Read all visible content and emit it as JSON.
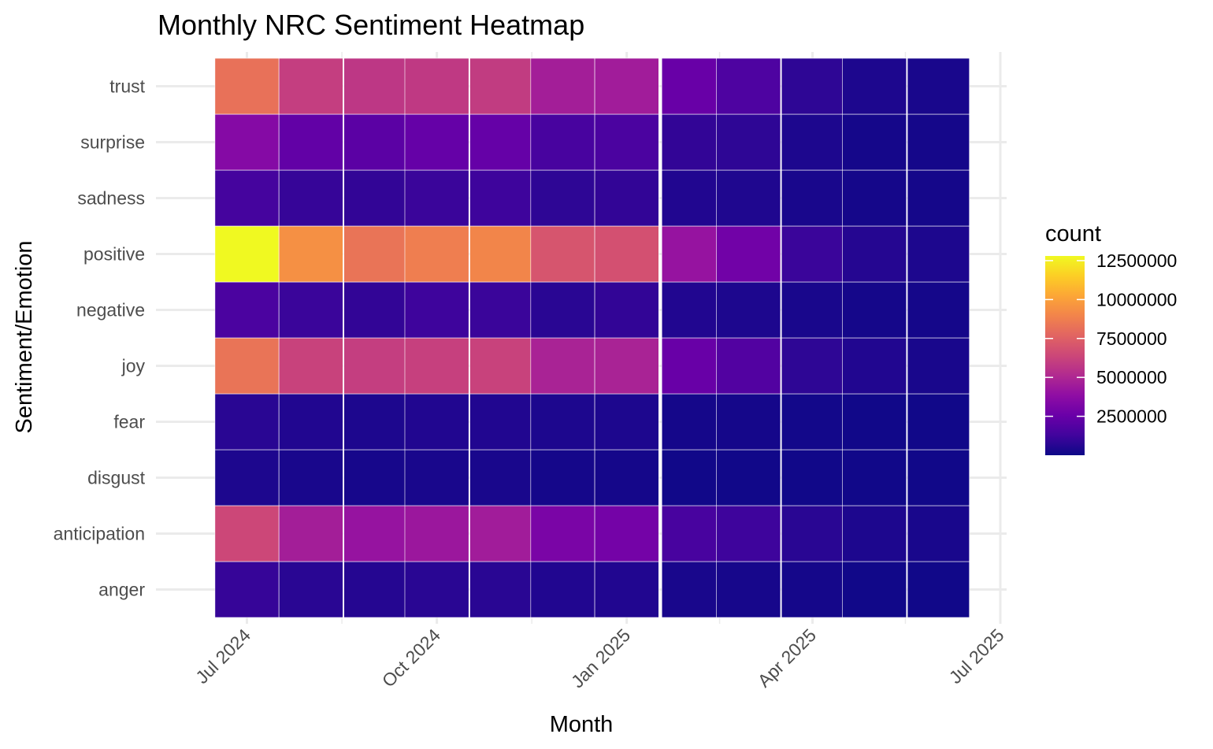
{
  "chart_data": {
    "type": "heatmap",
    "title": "Monthly NRC Sentiment Heatmap",
    "xlabel": "Month",
    "ylabel": "Sentiment/Emotion",
    "x_tick_labels": [
      "Jul 2024",
      "Oct 2024",
      "Jan 2025",
      "Apr 2025",
      "Jul 2025"
    ],
    "x_tick_dates": [
      "2024-07-01",
      "2024-10-01",
      "2025-01-01",
      "2025-04-01",
      "2025-07-01"
    ],
    "x_minor_dates": [
      "2024-08-16",
      "2024-11-16",
      "2025-02-15",
      "2025-05-16"
    ],
    "months": [
      "2024-07-01",
      "2024-08-01",
      "2024-09-01",
      "2024-10-01",
      "2024-11-01",
      "2024-12-01",
      "2025-01-01",
      "2025-02-01",
      "2025-03-01",
      "2025-04-01",
      "2025-05-01",
      "2025-06-01"
    ],
    "x_range": [
      "2024-06-06",
      "2025-07-01"
    ],
    "categories": [
      "anger",
      "anticipation",
      "disgust",
      "fear",
      "joy",
      "negative",
      "positive",
      "sadness",
      "surprise",
      "trust"
    ],
    "values": {
      "trust": [
        8200000,
        6000000,
        5700000,
        5800000,
        5900000,
        4600000,
        4500000,
        2500000,
        1700000,
        800000,
        400000,
        300000
      ],
      "surprise": [
        3500000,
        2300000,
        2100000,
        2400000,
        2400000,
        1500000,
        1600000,
        900000,
        800000,
        400000,
        200000,
        200000
      ],
      "sadness": [
        1400000,
        1000000,
        900000,
        1100000,
        1200000,
        800000,
        900000,
        500000,
        450000,
        300000,
        200000,
        200000
      ],
      "positive": [
        12800000,
        9400000,
        8300000,
        8700000,
        9000000,
        7000000,
        6800000,
        4100000,
        2800000,
        1100000,
        600000,
        400000
      ],
      "negative": [
        1600000,
        1100000,
        900000,
        1200000,
        1100000,
        700000,
        900000,
        500000,
        400000,
        300000,
        200000,
        200000
      ],
      "joy": [
        8300000,
        6200000,
        6000000,
        6100000,
        6200000,
        4800000,
        4800000,
        2500000,
        1800000,
        800000,
        500000,
        300000
      ],
      "fear": [
        700000,
        500000,
        400000,
        500000,
        500000,
        400000,
        400000,
        200000,
        200000,
        150000,
        100000,
        100000
      ],
      "disgust": [
        400000,
        300000,
        250000,
        300000,
        300000,
        200000,
        200000,
        100000,
        100000,
        100000,
        100000,
        100000
      ],
      "anticipation": [
        6400000,
        4600000,
        4100000,
        4300000,
        4500000,
        3100000,
        2900000,
        1500000,
        1200000,
        700000,
        400000,
        300000
      ],
      "anger": [
        1000000,
        700000,
        600000,
        700000,
        700000,
        500000,
        500000,
        300000,
        250000,
        200000,
        100000,
        100000
      ]
    },
    "value_range": [
      0,
      12800000
    ],
    "color_scale": "plasma",
    "plasma_stops": [
      "#0d0887",
      "#41049d",
      "#6a00a8",
      "#8f0da4",
      "#b12a90",
      "#cc4778",
      "#e16462",
      "#f2844b",
      "#fca636",
      "#fcce25",
      "#f0f921"
    ],
    "legend": {
      "title": "count",
      "position": "right",
      "breaks": [
        2500000,
        5000000,
        7500000,
        10000000,
        12500000
      ],
      "labels": [
        "2500000",
        "5000000",
        "7500000",
        "10000000",
        "12500000"
      ]
    },
    "grid": true,
    "tile_border_color": "#ffffff",
    "grid_color": "#ebebeb"
  }
}
